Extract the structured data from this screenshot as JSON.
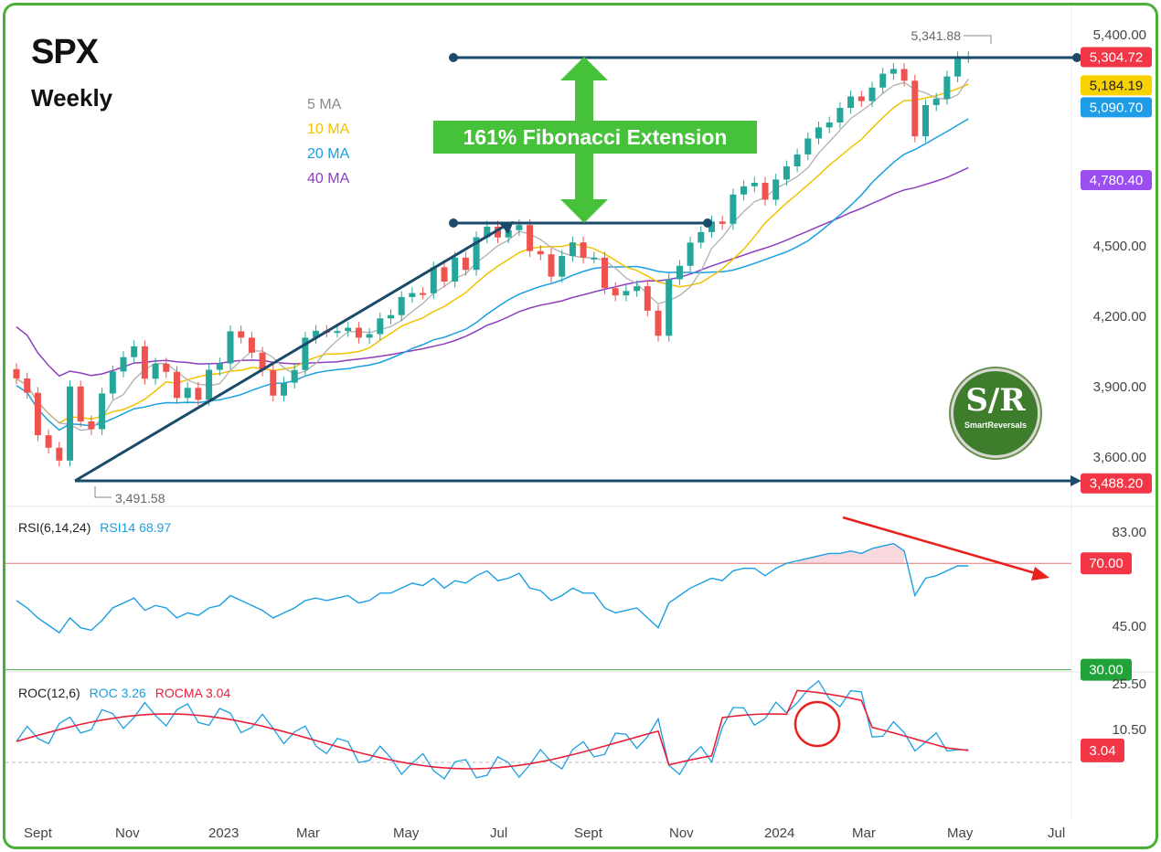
{
  "header": {
    "title": "SPX",
    "subtitle": "Weekly"
  },
  "ma_legend": [
    {
      "label": "5 MA",
      "color": "#8a8a8a"
    },
    {
      "label": "10 MA",
      "color": "#f2c200"
    },
    {
      "label": "20 MA",
      "color": "#1a9fe0"
    },
    {
      "label": "40 MA",
      "color": "#8e3ebd"
    }
  ],
  "annotation": {
    "fib_label": "161% Fibonacci Extension",
    "high_label": "5,341.88",
    "low_label": "3,491.58"
  },
  "price_badges": [
    {
      "label": "5,304.72",
      "value": 5304.72,
      "color": "#f23645"
    },
    {
      "label": "5,184.19",
      "value": 5184.19,
      "color": "#f7d200",
      "text_color": "#222"
    },
    {
      "label": "5,090.70",
      "value": 5090.7,
      "color": "#1e9ce8"
    },
    {
      "label": "4,780.40",
      "value": 4780.4,
      "color": "#9b4ff0"
    },
    {
      "label": "3,488.20",
      "value": 3488.2,
      "color": "#f23645"
    }
  ],
  "price_axis_ticks": [
    "5,400.00",
    "4,500.00",
    "4,200.00",
    "3,900.00",
    "3,600.00"
  ],
  "rsi": {
    "title": "RSI(6,14,24)",
    "value_label": "RSI14 68.97",
    "axis_ticks": [
      "83.00",
      "45.00"
    ],
    "badges": [
      {
        "label": "70.00",
        "color": "#f23645"
      },
      {
        "label": "30.00",
        "color": "#22a33a"
      }
    ]
  },
  "roc": {
    "title": "ROC(12,6)",
    "roc_label": "ROC 3.26",
    "rocma_label": "ROCMA 3.04",
    "axis_ticks": [
      "25.50",
      "10.50"
    ],
    "badge": {
      "label": "3.04",
      "color": "#f23645"
    }
  },
  "logo": {
    "big": "S/R",
    "small": "SmartReversals"
  },
  "x_axis_labels": [
    "Sept",
    "Nov",
    "2023",
    "Mar",
    "May",
    "Jul",
    "Sept",
    "Nov",
    "2024",
    "Mar",
    "May",
    "Jul"
  ],
  "chart_data": {
    "type": "candlestick",
    "title": "SPX",
    "subtitle": "Weekly",
    "up_color": "#26a69a",
    "down_color": "#ef5350",
    "close": [
      3935,
      3874,
      3693,
      3640,
      3585,
      3901,
      3752,
      3719,
      3871,
      3965,
      4026,
      4072,
      3934,
      3998,
      3963,
      3852,
      3895,
      3844,
      3972,
      3999,
      4136,
      4109,
      4045,
      3970,
      3862,
      3917,
      3971,
      4109,
      4138,
      4135,
      4137,
      4151,
      4109,
      4124,
      4191,
      4205,
      4282,
      4299,
      4298,
      4409,
      4348,
      4450,
      4398,
      4537,
      4582,
      4536,
      4567,
      4589,
      4478,
      4464,
      4369,
      4457,
      4515,
      4450,
      4450,
      4320,
      4289,
      4308,
      4328,
      4224,
      4117,
      4358,
      4415,
      4514,
      4559,
      4604,
      4594,
      4719,
      4754,
      4769,
      4697,
      4783,
      4839,
      4890,
      4958,
      5005,
      5026,
      5088,
      5137,
      5117,
      5175,
      5234,
      5254,
      5204,
      4967,
      5100,
      5127,
      5222,
      5304,
      5304
    ],
    "rsi14": [
      55,
      52,
      48,
      45,
      42,
      48,
      44,
      43,
      47,
      52,
      54,
      56,
      51,
      53,
      52,
      48,
      50,
      49,
      52,
      53,
      57,
      55,
      53,
      51,
      48,
      50,
      52,
      55,
      56,
      55,
      56,
      57,
      54,
      55,
      58,
      58,
      60,
      62,
      61,
      64,
      60,
      63,
      62,
      65,
      67,
      63,
      64,
      66,
      60,
      59,
      55,
      57,
      60,
      58,
      58,
      52,
      50,
      51,
      52,
      48,
      44,
      54,
      57,
      60,
      62,
      64,
      63,
      67,
      68,
      68,
      65,
      68,
      70,
      71,
      72,
      73,
      74,
      74,
      75,
      74,
      76,
      77,
      78,
      75,
      57,
      64,
      65,
      67,
      68.97,
      68.97
    ],
    "rsi_levels": [
      30,
      70
    ],
    "roc": [
      3.26
    ],
    "rocma": [
      3.04
    ],
    "price_badges": [
      5304.72,
      5184.19,
      5090.7,
      4780.4,
      3488.2
    ],
    "high": 5341.88,
    "low": 3491.58
  }
}
